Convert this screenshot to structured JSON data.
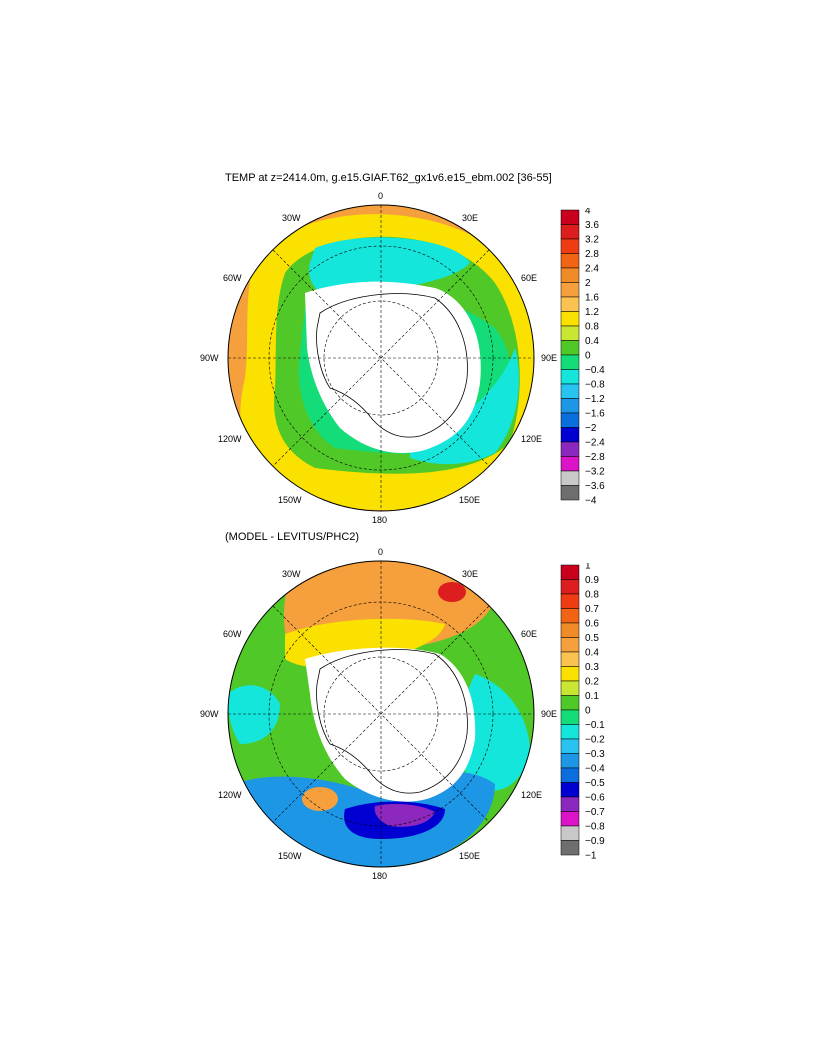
{
  "panel1": {
    "title": "TEMP at z=2414.0m, g.e15.GIAF.T62_gx1v6.e15_ebm.002 [36-55]",
    "lon_labels": [
      "0",
      "30E",
      "60E",
      "90E",
      "120E",
      "150E",
      "180",
      "150W",
      "120W",
      "90W",
      "60W",
      "30W"
    ],
    "colorbar": {
      "labels": [
        "4",
        "3.6",
        "3.2",
        "2.8",
        "2.4",
        "2",
        "1.6",
        "1.2",
        "0.8",
        "0.4",
        "0",
        "−0.4",
        "−0.8",
        "−1.2",
        "−1.6",
        "−2",
        "−2.4",
        "−2.8",
        "−3.2",
        "−3.6",
        "−4"
      ],
      "colors": [
        "#c8001e",
        "#dc1e1e",
        "#f03c14",
        "#f06414",
        "#f08c28",
        "#f5a03c",
        "#fac350",
        "#fae100",
        "#c8e632",
        "#50c828",
        "#14dc78",
        "#14e6dc",
        "#28c3f0",
        "#1e96e6",
        "#0a6edc",
        "#0000d2",
        "#8c28be",
        "#dc14c8",
        "#c8c8c8",
        "#6e6e6e"
      ]
    },
    "regions": [
      {
        "name": "outer-orange-band",
        "color": "#f5a03c"
      },
      {
        "name": "yellow-band",
        "color": "#fae100"
      },
      {
        "name": "green-band",
        "color": "#50c828"
      },
      {
        "name": "bright-green-band",
        "color": "#14dc78"
      },
      {
        "name": "cyan-weddell",
        "color": "#14e6dc"
      },
      {
        "name": "white-coastal-mask",
        "color": "#ffffff"
      }
    ]
  },
  "panel2": {
    "title": "(MODEL - LEVITUS/PHC2)",
    "lon_labels": [
      "0",
      "30E",
      "60E",
      "90E",
      "120E",
      "150E",
      "180",
      "150W",
      "120W",
      "90W",
      "60W",
      "30W"
    ],
    "colorbar": {
      "labels": [
        "1",
        "0.9",
        "0.8",
        "0.7",
        "0.6",
        "0.5",
        "0.4",
        "0.3",
        "0.2",
        "0.1",
        "0",
        "−0.1",
        "−0.2",
        "−0.3",
        "−0.4",
        "−0.5",
        "−0.6",
        "−0.7",
        "−0.8",
        "−0.9",
        "−1"
      ],
      "colors": [
        "#c8001e",
        "#dc1e1e",
        "#f03c14",
        "#f06414",
        "#f08c28",
        "#f5a03c",
        "#fac350",
        "#fae100",
        "#c8e632",
        "#50c828",
        "#14dc78",
        "#14e6dc",
        "#28c3f0",
        "#1e96e6",
        "#0a6edc",
        "#0000d2",
        "#8c28be",
        "#dc14c8",
        "#c8c8c8",
        "#6e6e6e"
      ]
    },
    "regions": [
      {
        "name": "green-background",
        "color": "#50c828"
      },
      {
        "name": "orange-atlantic",
        "color": "#f5a03c"
      },
      {
        "name": "yellow-atlantic",
        "color": "#fae100"
      },
      {
        "name": "cyan-indian",
        "color": "#14e6dc"
      },
      {
        "name": "blue-pacific",
        "color": "#1e96e6"
      },
      {
        "name": "deep-blue-ross",
        "color": "#0000d2"
      },
      {
        "name": "purple-ross",
        "color": "#8c28be"
      },
      {
        "name": "red-atlantic-spot",
        "color": "#dc1e1e"
      }
    ]
  }
}
